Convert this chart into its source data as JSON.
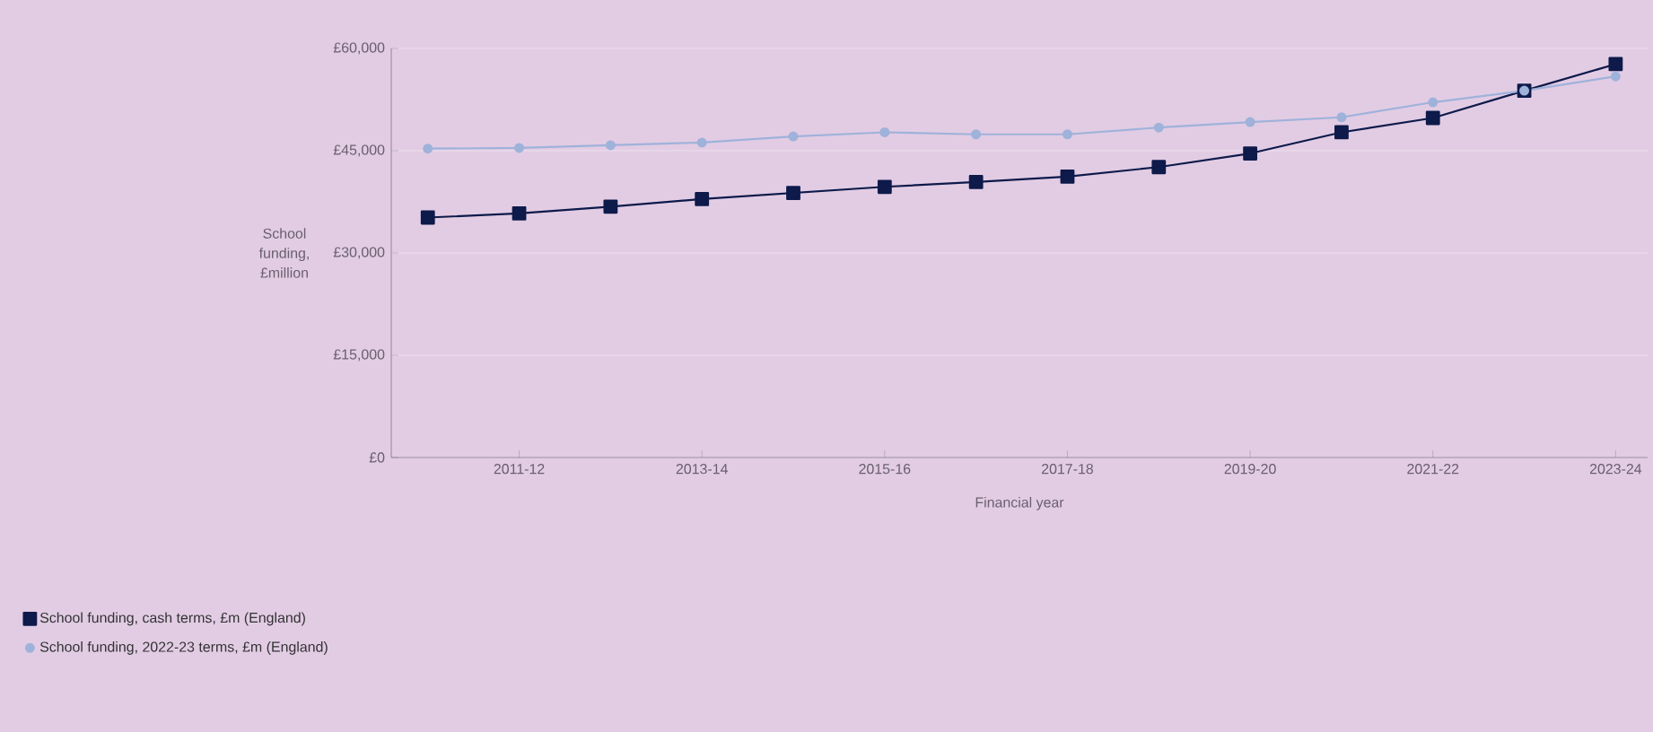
{
  "chart_data": {
    "type": "line",
    "xlabel": "Financial year",
    "ylabel": "School funding, £million",
    "categories": [
      null,
      "2011-12",
      null,
      "2013-14",
      null,
      "2015-16",
      null,
      "2017-18",
      null,
      "2019-20",
      null,
      "2021-22",
      null,
      "2023-24"
    ],
    "ylim": [
      0,
      60000
    ],
    "yticks": [
      {
        "value": 0,
        "label": "£0"
      },
      {
        "value": 15000,
        "label": "£15,000"
      },
      {
        "value": 30000,
        "label": "£30,000"
      },
      {
        "value": 45000,
        "label": "£45,000"
      },
      {
        "value": 60000,
        "label": "£60,000"
      }
    ],
    "grid": "y",
    "legend": "bottom left",
    "series": [
      {
        "name": "School funding, cash terms, £m (England)",
        "color": "#0d1a4a",
        "marker": "square",
        "values": [
          35200,
          35800,
          36800,
          37900,
          38800,
          39700,
          40400,
          41200,
          42600,
          44600,
          47700,
          49800,
          53800,
          57700
        ]
      },
      {
        "name": "School funding, 2022-23 terms, £m (England)",
        "color": "#9fb2da",
        "marker": "circle",
        "values": [
          45300,
          45400,
          45800,
          46200,
          47100,
          47700,
          47400,
          47400,
          48400,
          49200,
          49900,
          52100,
          53800,
          55900
        ]
      }
    ]
  }
}
